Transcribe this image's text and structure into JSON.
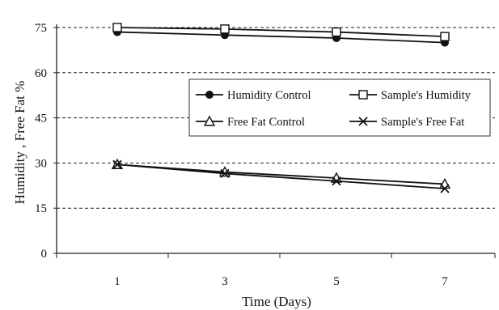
{
  "chart_data": {
    "type": "line",
    "xlabel": "Time (Days)",
    "ylabel": "Humidity , Free Fat %",
    "categories": [
      "1",
      "3",
      "5",
      "7"
    ],
    "ylim": [
      0,
      75
    ],
    "yticks": [
      "0",
      "15",
      "30",
      "45",
      "60",
      "75"
    ],
    "grid": "horizontal dashed",
    "legend_placement": "center-right",
    "series": [
      {
        "name": "Humidity Control",
        "marker": "filled-circle",
        "values": [
          73.5,
          72.5,
          71.5,
          70.0
        ]
      },
      {
        "name": "Sample's Humidity",
        "marker": "open-square",
        "values": [
          75.0,
          74.5,
          73.5,
          72.0
        ]
      },
      {
        "name": "Free Fat Control",
        "marker": "open-triangle",
        "values": [
          29.5,
          27.0,
          25.0,
          23.0
        ]
      },
      {
        "name": "Sample's Free Fat",
        "marker": "x-cross",
        "values": [
          29.5,
          26.5,
          24.0,
          21.5
        ]
      }
    ]
  }
}
